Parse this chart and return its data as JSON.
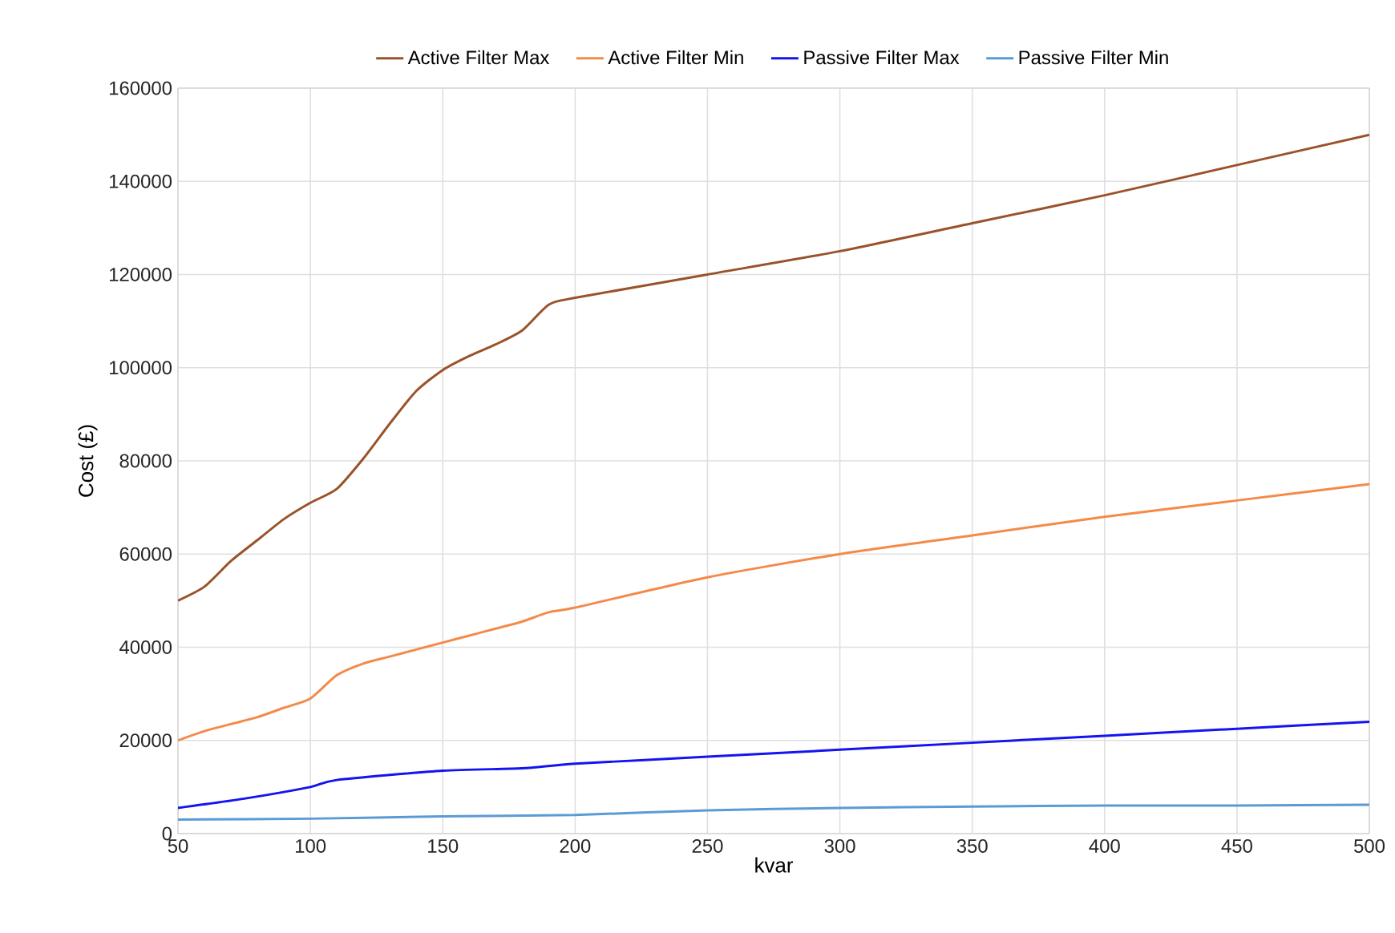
{
  "chart_data": {
    "type": "line",
    "xlabel": "kvar",
    "ylabel": "Cost (£)",
    "xlim": [
      50,
      500
    ],
    "xticks": [
      50,
      100,
      150,
      200,
      250,
      300,
      350,
      400,
      450,
      500
    ],
    "ylim": [
      0,
      160000
    ],
    "yticks": [
      0,
      20000,
      40000,
      60000,
      80000,
      100000,
      120000,
      140000,
      160000
    ],
    "grid": true,
    "legend": "top",
    "marker": "none",
    "line_style": "solid",
    "series": [
      {
        "name": "Active Filter Max",
        "color": "#9a522a",
        "x": [
          50,
          60,
          70,
          80,
          90,
          100,
          110,
          120,
          130,
          140,
          150,
          160,
          170,
          180,
          190,
          200,
          250,
          300,
          350,
          400,
          450,
          500
        ],
        "values": [
          50000,
          53000,
          58500,
          63000,
          67500,
          71000,
          74000,
          80500,
          88000,
          95000,
          99500,
          102500,
          105000,
          108000,
          113500,
          115000,
          120000,
          125000,
          131000,
          137000,
          143500,
          150000
        ]
      },
      {
        "name": "Active Filter Min",
        "color": "#f48a4a",
        "x": [
          50,
          60,
          70,
          80,
          90,
          100,
          110,
          120,
          130,
          140,
          150,
          160,
          170,
          180,
          190,
          200,
          250,
          300,
          350,
          400,
          450,
          500
        ],
        "values": [
          20000,
          22000,
          23500,
          25000,
          27000,
          29000,
          34000,
          36500,
          38000,
          39500,
          41000,
          42500,
          44000,
          45500,
          47500,
          48500,
          55000,
          60000,
          64000,
          68000,
          71500,
          75000
        ]
      },
      {
        "name": "Passive Filter Max",
        "color": "#1414f0",
        "x": [
          50,
          75,
          100,
          110,
          150,
          180,
          200,
          250,
          300,
          350,
          400,
          450,
          500
        ],
        "values": [
          5500,
          7500,
          10000,
          11500,
          13500,
          14000,
          15000,
          16500,
          18000,
          19500,
          21000,
          22500,
          24000
        ]
      },
      {
        "name": "Passive Filter Min",
        "color": "#5b9bd5",
        "x": [
          50,
          100,
          150,
          200,
          250,
          300,
          350,
          400,
          450,
          500
        ],
        "values": [
          3000,
          3200,
          3700,
          4000,
          5000,
          5500,
          5800,
          6000,
          6000,
          6200
        ]
      }
    ]
  }
}
